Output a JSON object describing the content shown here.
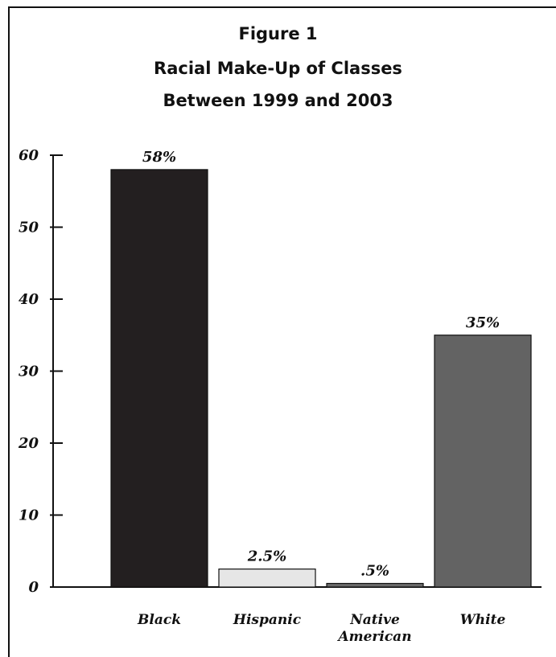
{
  "chart_data": {
    "type": "bar",
    "title": "Figure 1",
    "subtitle_lines": [
      "Racial Make-Up of Classes",
      "Between 1999 and 2003"
    ],
    "xlabel": "",
    "ylabel": "",
    "ylim": [
      0,
      60
    ],
    "yticks": [
      0,
      10,
      20,
      30,
      40,
      50,
      60
    ],
    "ytick_labels": [
      "0",
      "10",
      "20",
      "30",
      "40",
      "50",
      "60"
    ],
    "categories": [
      [
        "Black"
      ],
      [
        "Hispanic"
      ],
      [
        "Native",
        "American"
      ],
      [
        "White"
      ]
    ],
    "values": [
      58,
      2.5,
      0.5,
      35
    ],
    "data_labels": [
      "58%",
      "2.5%",
      ".5%",
      "35%"
    ],
    "bar_colors": [
      "#231f20",
      "#e6e6e6",
      "#6b6b6b",
      "#636363"
    ],
    "bar_stroke": "#111111",
    "grid": false,
    "legend": "none"
  }
}
